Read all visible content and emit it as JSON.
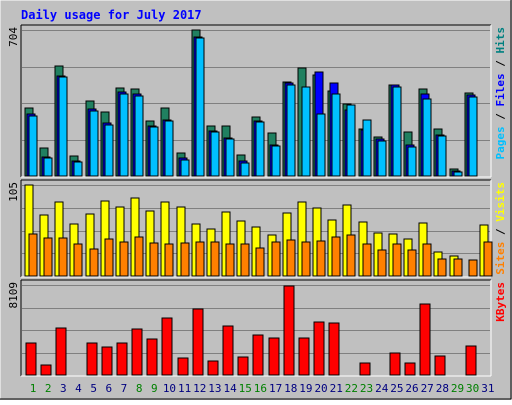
{
  "chart_data": {
    "type": "bar",
    "title": "Daily usage for July 2017",
    "days": [
      "1",
      "2",
      "3",
      "4",
      "5",
      "6",
      "7",
      "8",
      "9",
      "10",
      "11",
      "12",
      "13",
      "14",
      "15",
      "16",
      "17",
      "18",
      "19",
      "20",
      "21",
      "22",
      "23",
      "24",
      "25",
      "26",
      "27",
      "28",
      "29",
      "30",
      "31"
    ],
    "weekend_days": [
      "1",
      "2",
      "8",
      "9",
      "15",
      "16",
      "22",
      "23",
      "29",
      "30"
    ],
    "panels": [
      {
        "id": "hits",
        "ylim": [
          0,
          704
        ],
        "max_label": "704",
        "axis_labels": [
          {
            "text": "Pages",
            "color": "#00c0ff"
          },
          {
            "text": " / ",
            "color": "#000000"
          },
          {
            "text": "Files",
            "color": "#0000ff"
          },
          {
            "text": " / ",
            "color": "#000000"
          },
          {
            "text": "Hits",
            "color": "#008080"
          }
        ],
        "series": [
          {
            "name": "Hits",
            "color": "#208060",
            "values": [
              330,
              135,
              532,
              95,
              360,
              310,
              425,
              418,
              265,
              330,
              110,
              704,
              240,
              240,
              100,
              285,
              205,
              455,
              522,
              486,
              410,
              345,
              225,
              190,
              440,
              210,
              420,
              225,
              35,
              398,
              0
            ]
          },
          {
            "name": "Files",
            "color": "#0000ff",
            "values": [
              297,
              90,
              480,
              70,
              325,
              255,
              405,
              395,
              240,
              270,
              85,
              670,
              215,
              185,
              70,
              265,
              150,
              450,
              0,
              500,
              450,
              320,
              220,
              180,
              440,
              150,
              395,
              200,
              25,
              390,
              0
            ]
          },
          {
            "name": "Pages",
            "color": "#00c0ff",
            "values": [
              290,
              85,
              475,
              68,
              315,
              245,
              395,
              385,
              235,
              265,
              78,
              665,
              210,
              178,
              62,
              260,
              145,
              440,
              430,
              300,
              395,
              340,
              272,
              170,
              430,
              142,
              372,
              195,
              20,
              380,
              0
            ]
          }
        ]
      },
      {
        "id": "sites",
        "ylim": [
          0,
          105
        ],
        "max_label": "105",
        "axis_labels": [
          {
            "text": "Sites",
            "color": "#ff8000"
          },
          {
            "text": " / ",
            "color": "#000000"
          },
          {
            "text": "Visits",
            "color": "#ffff00"
          }
        ],
        "series": [
          {
            "name": "Visits",
            "color": "#ffff00",
            "values": [
              105,
              70,
              85,
              60,
              72,
              87,
              80,
              90,
              75,
              85,
              80,
              60,
              54,
              74,
              64,
              56,
              47,
              73,
              85,
              78,
              65,
              82,
              62,
              50,
              48,
              43,
              61,
              28,
              23,
              0,
              59
            ]
          },
          {
            "name": "Sites",
            "color": "#ff8000",
            "values": [
              48,
              44,
              44,
              37,
              31,
              43,
              39,
              45,
              38,
              37,
              38,
              39,
              39,
              37,
              37,
              32,
              39,
              42,
              39,
              40,
              45,
              47,
              37,
              30,
              37,
              30,
              37,
              20,
              20,
              18,
              39
            ]
          }
        ]
      },
      {
        "id": "kbytes",
        "ylim": [
          0,
          8109
        ],
        "max_label": "8109",
        "axis_labels": [
          {
            "text": "KBytes",
            "color": "#ff0000"
          }
        ],
        "series": [
          {
            "name": "KBytes",
            "color": "#ff0000",
            "values": [
              2900,
              870,
              4250,
              0,
              2870,
              2500,
              2870,
              4180,
              3280,
              5120,
              1520,
              5960,
              1260,
              4390,
              1600,
              3620,
              3300,
              8000,
              3320,
              4770,
              4730,
              0,
              1120,
              0,
              2010,
              1060,
              6410,
              1690,
              0,
              2600,
              0
            ]
          }
        ]
      }
    ]
  }
}
